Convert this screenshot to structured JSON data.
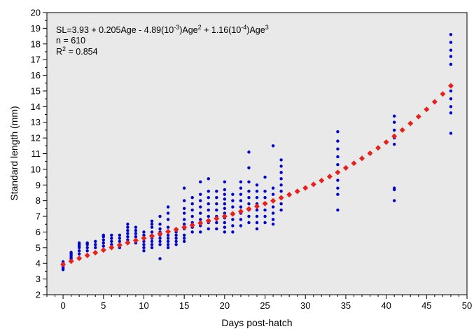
{
  "chart_data": {
    "type": "scatter",
    "xlabel": "Days post-hatch",
    "ylabel": "Standard length (mm)",
    "xlim": [
      -2,
      50
    ],
    "ylim": [
      2,
      20
    ],
    "xticks": [
      0,
      5,
      10,
      15,
      20,
      25,
      30,
      35,
      40,
      45,
      50
    ],
    "yticks": [
      2,
      3,
      4,
      5,
      6,
      7,
      8,
      9,
      10,
      11,
      12,
      13,
      14,
      15,
      16,
      17,
      18,
      19,
      20
    ],
    "grid": false,
    "background": "#e9e9e9",
    "annotation": {
      "eq_prefix": "SL=3.93 + 0.205Age - 4.89(10",
      "eq_sup1": "-3",
      "eq_mid": ")Age",
      "eq_sup2": "2",
      "eq_mid2": " + 1.16(10",
      "eq_sup3": "-4",
      "eq_mid3": ")Age",
      "eq_sup4": "3",
      "n_label": "n = 610",
      "r2_prefix": "R",
      "r2_sup": "2",
      "r2_suffix": " = 0.854"
    },
    "observed": {
      "color": "#0000cc",
      "groups": [
        {
          "x": 0,
          "y": [
            3.6,
            3.7,
            3.8,
            3.9,
            4.0,
            4.1
          ]
        },
        {
          "x": 1,
          "y": [
            4.2,
            4.3,
            4.4,
            4.5,
            4.6,
            4.7
          ]
        },
        {
          "x": 2,
          "y": [
            4.6,
            4.8,
            5.0,
            5.1,
            5.2,
            5.3
          ]
        },
        {
          "x": 3,
          "y": [
            4.8,
            5.0,
            5.2,
            5.3
          ]
        },
        {
          "x": 4,
          "y": [
            5.0,
            5.2,
            5.4
          ]
        },
        {
          "x": 5,
          "y": [
            5.1,
            5.3,
            5.5,
            5.7,
            5.8
          ]
        },
        {
          "x": 6,
          "y": [
            5.0,
            5.2,
            5.4,
            5.6,
            5.8
          ]
        },
        {
          "x": 7,
          "y": [
            5.0,
            5.2,
            5.4,
            5.6,
            5.8
          ]
        },
        {
          "x": 8,
          "y": [
            5.3,
            5.5,
            5.7,
            5.9,
            6.1,
            6.3,
            6.5
          ]
        },
        {
          "x": 9,
          "y": [
            5.3,
            5.5,
            5.7,
            5.9,
            6.1,
            6.3
          ]
        },
        {
          "x": 10,
          "y": [
            4.8,
            5.0,
            5.2,
            5.4,
            5.6,
            5.8,
            6.0
          ]
        },
        {
          "x": 11,
          "y": [
            5.0,
            5.2,
            5.4,
            5.6,
            5.8,
            6.0,
            6.3,
            6.5,
            6.7
          ]
        },
        {
          "x": 12,
          "y": [
            4.3,
            5.2,
            5.4,
            5.6,
            5.8,
            6.0,
            6.2,
            6.5,
            7.0
          ]
        },
        {
          "x": 13,
          "y": [
            5.0,
            5.2,
            5.4,
            5.6,
            5.8,
            6.0,
            6.3,
            6.8,
            7.2,
            7.6
          ]
        },
        {
          "x": 14,
          "y": [
            5.2,
            5.4,
            5.6,
            5.8,
            6.0
          ]
        },
        {
          "x": 15,
          "y": [
            5.4,
            5.6,
            5.8,
            6.2,
            6.5,
            6.8,
            7.2,
            7.5,
            8.0,
            8.8
          ]
        },
        {
          "x": 16,
          "y": [
            6.0,
            6.3,
            6.6,
            7.0,
            7.4,
            7.8,
            8.2
          ]
        },
        {
          "x": 17,
          "y": [
            6.0,
            6.4,
            6.8,
            7.2,
            7.6,
            8.0,
            8.4,
            9.2
          ]
        },
        {
          "x": 18,
          "y": [
            6.2,
            6.6,
            7.0,
            7.4,
            7.8,
            8.2,
            8.6,
            9.4
          ]
        },
        {
          "x": 19,
          "y": [
            6.2,
            6.6,
            7.0,
            7.4,
            7.8,
            8.2,
            8.6
          ]
        },
        {
          "x": 20,
          "y": [
            6.0,
            6.3,
            6.6,
            6.9,
            7.2,
            7.5,
            7.8,
            8.1,
            8.4,
            8.7,
            9.2
          ]
        },
        {
          "x": 21,
          "y": [
            6.0,
            6.4,
            6.8,
            7.2,
            7.6,
            8.0,
            8.4
          ]
        },
        {
          "x": 22,
          "y": [
            6.4,
            6.8,
            7.2,
            7.6,
            8.0,
            8.4,
            8.8,
            9.2
          ]
        },
        {
          "x": 23,
          "y": [
            6.6,
            7.0,
            7.4,
            7.8,
            8.2,
            8.6,
            9.2,
            10.1,
            11.1
          ]
        },
        {
          "x": 24,
          "y": [
            6.2,
            6.6,
            7.0,
            7.4,
            7.8,
            8.2,
            8.6,
            9.0
          ]
        },
        {
          "x": 25,
          "y": [
            6.6,
            7.0,
            7.4,
            7.8,
            8.2,
            8.6,
            9.5
          ]
        },
        {
          "x": 26,
          "y": [
            6.5,
            6.8,
            7.2,
            7.6,
            8.0,
            8.4,
            8.8,
            11.5
          ]
        },
        {
          "x": 27,
          "y": [
            7.4,
            7.8,
            8.2,
            8.6,
            9.0,
            9.4,
            9.8,
            10.2,
            10.6
          ]
        },
        {
          "x": 34,
          "y": [
            7.4,
            8.4,
            8.8,
            9.3,
            9.8,
            10.3,
            10.8,
            11.3,
            11.8,
            12.4
          ]
        },
        {
          "x": 41,
          "y": [
            8.0,
            8.7,
            8.8,
            11.6,
            12.0,
            12.5,
            13.0,
            13.4
          ]
        },
        {
          "x": 48,
          "y": [
            12.3,
            13.6,
            14.0,
            14.5,
            15.0,
            16.7,
            17.2,
            17.6,
            18.1,
            18.6
          ]
        }
      ]
    },
    "fitted": {
      "color": "#e8201c",
      "coefficients": [
        3.93,
        0.205,
        -0.00489,
        0.000116
      ],
      "x_start": 0,
      "x_end": 48,
      "x_step": 1
    }
  }
}
